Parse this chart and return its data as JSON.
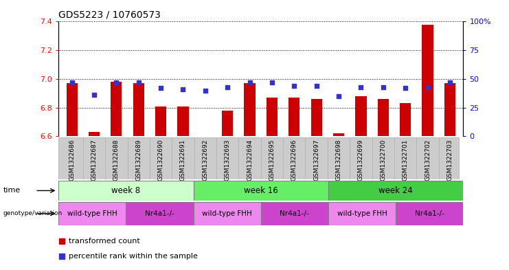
{
  "title": "GDS5223 / 10760573",
  "samples": [
    "GSM1322686",
    "GSM1322687",
    "GSM1322688",
    "GSM1322689",
    "GSM1322690",
    "GSM1322691",
    "GSM1322692",
    "GSM1322693",
    "GSM1322694",
    "GSM1322695",
    "GSM1322696",
    "GSM1322697",
    "GSM1322698",
    "GSM1322699",
    "GSM1322700",
    "GSM1322701",
    "GSM1322702",
    "GSM1322703"
  ],
  "transformed_count": [
    6.97,
    6.63,
    6.98,
    6.97,
    6.81,
    6.81,
    6.6,
    6.78,
    6.97,
    6.87,
    6.87,
    6.86,
    6.62,
    6.88,
    6.86,
    6.83,
    7.38,
    6.97
  ],
  "percentile_rank": [
    47,
    36,
    47,
    47,
    42,
    41,
    40,
    43,
    47,
    47,
    44,
    44,
    35,
    43,
    43,
    42,
    43,
    47
  ],
  "ylim_left": [
    6.6,
    7.4
  ],
  "ylim_right": [
    0,
    100
  ],
  "yticks_left": [
    6.6,
    6.8,
    7.0,
    7.2,
    7.4
  ],
  "yticks_right": [
    0,
    25,
    50,
    75,
    100
  ],
  "bar_color": "#cc0000",
  "dot_color": "#3333cc",
  "time_groups": [
    {
      "label": "week 8",
      "start": 0,
      "end": 6,
      "color": "#ccffcc"
    },
    {
      "label": "week 16",
      "start": 6,
      "end": 12,
      "color": "#66ee66"
    },
    {
      "label": "week 24",
      "start": 12,
      "end": 18,
      "color": "#44cc44"
    }
  ],
  "genotype_groups": [
    {
      "label": "wild-type FHH",
      "start": 0,
      "end": 3,
      "color": "#ee88ee"
    },
    {
      "label": "Nr4a1-/-",
      "start": 3,
      "end": 6,
      "color": "#cc44cc"
    },
    {
      "label": "wild-type FHH",
      "start": 6,
      "end": 9,
      "color": "#ee88ee"
    },
    {
      "label": "Nr4a1-/-",
      "start": 9,
      "end": 12,
      "color": "#cc44cc"
    },
    {
      "label": "wild-type FHH",
      "start": 12,
      "end": 15,
      "color": "#ee88ee"
    },
    {
      "label": "Nr4a1-/-",
      "start": 15,
      "end": 18,
      "color": "#cc44cc"
    }
  ],
  "legend_items": [
    {
      "label": "transformed count",
      "color": "#cc0000",
      "marker": "s"
    },
    {
      "label": "percentile rank within the sample",
      "color": "#3333cc",
      "marker": "s"
    }
  ],
  "bar_width": 0.5,
  "base_value": 6.6,
  "sample_bg_color": "#cccccc",
  "sample_border_color": "#aaaaaa"
}
